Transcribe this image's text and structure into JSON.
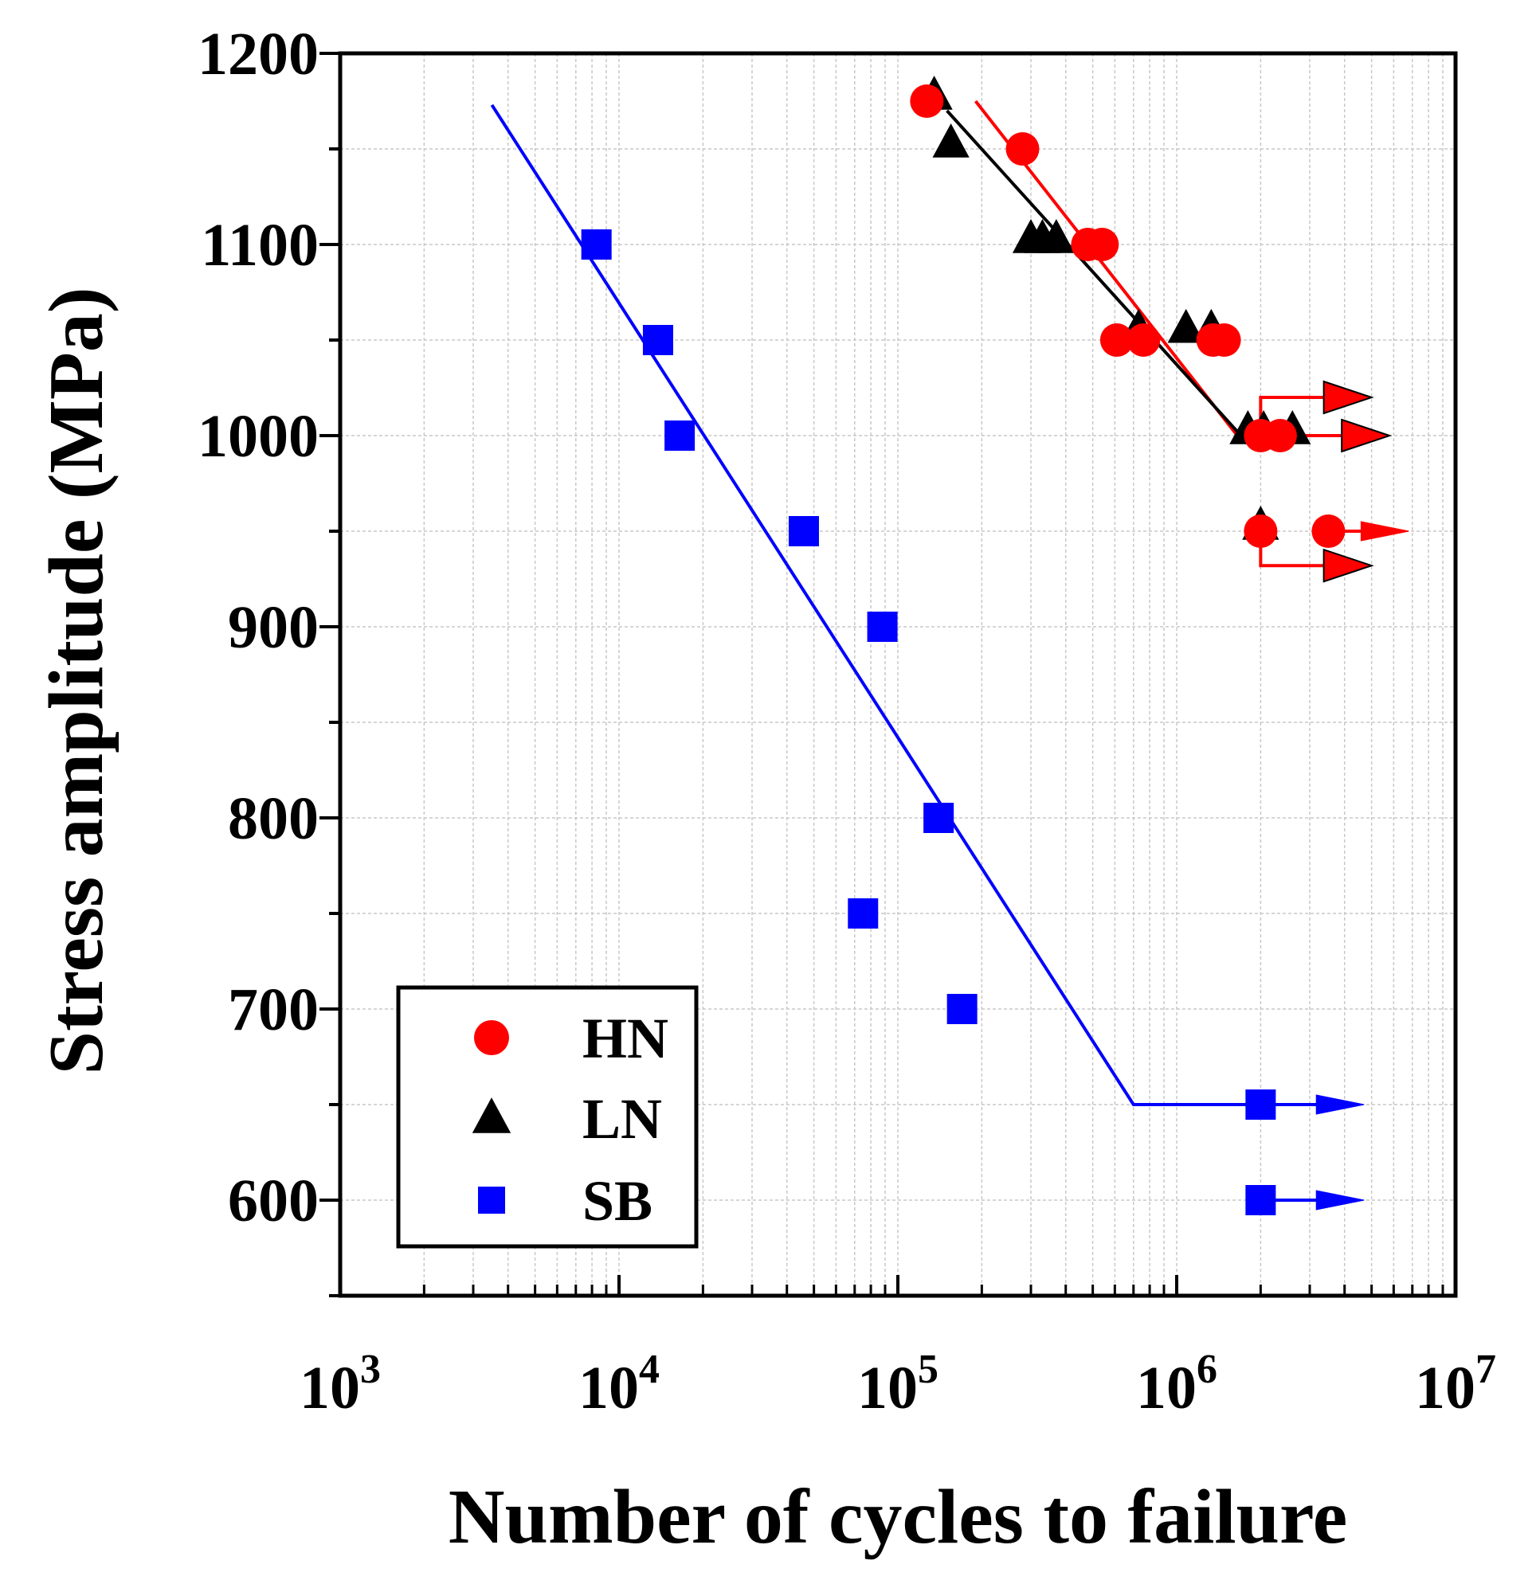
{
  "chart_data": {
    "type": "scatter",
    "xscale": "log",
    "xlim": [
      1000,
      10000000
    ],
    "ylim": [
      550,
      1200
    ],
    "xlabel": "Number of cycles to failure",
    "ylabel": "Stress amplitude (MPa)",
    "x_ticks": [
      {
        "value": 1000,
        "base": "10",
        "exp": "3"
      },
      {
        "value": 10000,
        "base": "10",
        "exp": "4"
      },
      {
        "value": 100000,
        "base": "10",
        "exp": "5"
      },
      {
        "value": 1000000,
        "base": "10",
        "exp": "6"
      },
      {
        "value": 10000000,
        "base": "10",
        "exp": "7"
      }
    ],
    "y_ticks": [
      {
        "value": 600,
        "label": "600"
      },
      {
        "value": 700,
        "label": "700"
      },
      {
        "value": 800,
        "label": "800"
      },
      {
        "value": 900,
        "label": "900"
      },
      {
        "value": 1000,
        "label": "1000"
      },
      {
        "value": 1100,
        "label": "1100"
      },
      {
        "value": 1200,
        "label": "1200"
      }
    ],
    "grid": true,
    "legend_position": "bottom-left",
    "series": [
      {
        "name": "HN",
        "marker": "circle",
        "color": "#ff0000",
        "points": [
          [
            127000,
            1175
          ],
          [
            280000,
            1150
          ],
          [
            480000,
            1100
          ],
          [
            540000,
            1100
          ],
          [
            610000,
            1050
          ],
          [
            760000,
            1050
          ],
          [
            1350000,
            1050
          ],
          [
            1480000,
            1050
          ],
          [
            2000000,
            1000
          ],
          [
            2350000,
            1000
          ],
          [
            2000000,
            950
          ],
          [
            3500000,
            950
          ]
        ],
        "fit_line": [
          [
            190000,
            1175
          ],
          [
            1650000,
            1000
          ],
          [
            2000000,
            1000
          ]
        ],
        "runouts": [
          {
            "x": 2000000,
            "y": 1000,
            "to_y": 1020,
            "to_x": 5000000
          },
          {
            "x": 2350000,
            "y": 1000,
            "to_y": 1000,
            "to_x": 5800000
          },
          {
            "x": 3500000,
            "y": 950,
            "to_y": 950,
            "to_x": 6800000
          },
          {
            "x": 2000000,
            "y": 950,
            "to_y": 932,
            "to_x": 5000000
          }
        ]
      },
      {
        "name": "LN",
        "marker": "triangle",
        "color": "#000000",
        "points": [
          [
            135000,
            1178
          ],
          [
            155000,
            1153
          ],
          [
            300000,
            1103
          ],
          [
            330000,
            1103
          ],
          [
            370000,
            1103
          ],
          [
            730000,
            1056
          ],
          [
            1080000,
            1056
          ],
          [
            1330000,
            1056
          ],
          [
            1800000,
            1003
          ],
          [
            2050000,
            1003
          ],
          [
            2600000,
            1003
          ],
          [
            2000000,
            953
          ]
        ],
        "fit_line": [
          [
            150000,
            1170
          ],
          [
            1700000,
            1000
          ]
        ]
      },
      {
        "name": "SB",
        "marker": "square",
        "color": "#0000ff",
        "points": [
          [
            8300,
            1100
          ],
          [
            13800,
            1050
          ],
          [
            16500,
            1000
          ],
          [
            46000,
            950
          ],
          [
            88000,
            900
          ],
          [
            140000,
            800
          ],
          [
            75000,
            750
          ],
          [
            170000,
            700
          ],
          [
            2000000,
            650
          ],
          [
            2000000,
            600
          ]
        ],
        "fit_line": [
          [
            3500,
            1173
          ],
          [
            700000,
            650
          ],
          [
            2000000,
            650
          ]
        ],
        "runouts": [
          {
            "x": 2000000,
            "y": 650,
            "to_y": 650,
            "to_x": 4700000
          },
          {
            "x": 2000000,
            "y": 600,
            "to_y": 600,
            "to_x": 4700000
          }
        ]
      }
    ]
  }
}
